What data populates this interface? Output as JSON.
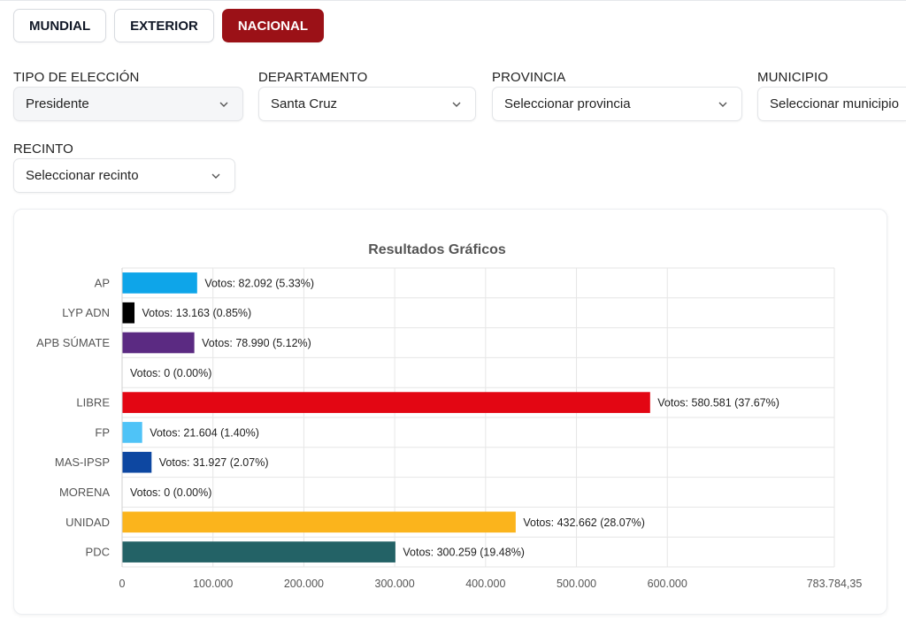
{
  "tabs": [
    {
      "label": "MUNDIAL",
      "active": false
    },
    {
      "label": "EXTERIOR",
      "active": false
    },
    {
      "label": "NACIONAL",
      "active": true
    }
  ],
  "filters": {
    "tipo_eleccion": {
      "label": "TIPO DE ELECCIÓN",
      "value": "Presidente"
    },
    "departamento": {
      "label": "DEPARTAMENTO",
      "value": "Santa Cruz"
    },
    "provincia": {
      "label": "PROVINCIA",
      "value": "Seleccionar provincia"
    },
    "municipio": {
      "label": "MUNICIPIO",
      "value": "Seleccionar municipio"
    },
    "recinto": {
      "label": "RECINTO",
      "value": "Seleccionar recinto"
    }
  },
  "colors": {
    "accent": "#9b1117"
  },
  "chart_data": {
    "type": "bar",
    "orientation": "horizontal",
    "title": "Resultados Gráficos",
    "categories": [
      "AP",
      "LYP ADN",
      "APB SÚMATE",
      "",
      "LIBRE",
      "FP",
      "MAS-IPSP",
      "MORENA",
      "UNIDAD",
      "PDC"
    ],
    "values": [
      82092,
      13163,
      78990,
      0,
      580581,
      21604,
      31927,
      0,
      432662,
      300259
    ],
    "data_labels": [
      "Votos: 82.092 (5.33%)",
      "Votos: 13.163 (0.85%)",
      "Votos: 78.990 (5.12%)",
      "Votos: 0 (0.00%)",
      "Votos: 580.581 (37.67%)",
      "Votos: 21.604 (1.40%)",
      "Votos: 31.927 (2.07%)",
      "Votos: 0 (0.00%)",
      "Votos: 432.662 (28.07%)",
      "Votos: 300.259 (19.48%)"
    ],
    "bar_colors": [
      "#0ea5e9",
      "#000000",
      "#5b2a82",
      "#cccccc",
      "#e30613",
      "#4fc3f7",
      "#0d47a1",
      "#8b0000",
      "#fbb41c",
      "#236266"
    ],
    "xlim": [
      0,
      783784.35
    ],
    "x_ticks": [
      0,
      100000,
      200000,
      300000,
      400000,
      500000,
      600000,
      783784.35
    ],
    "x_tick_labels": [
      "0",
      "100.000",
      "200.000",
      "300.000",
      "400.000",
      "500.000",
      "600.000",
      "783.784,35"
    ],
    "grid": true
  }
}
